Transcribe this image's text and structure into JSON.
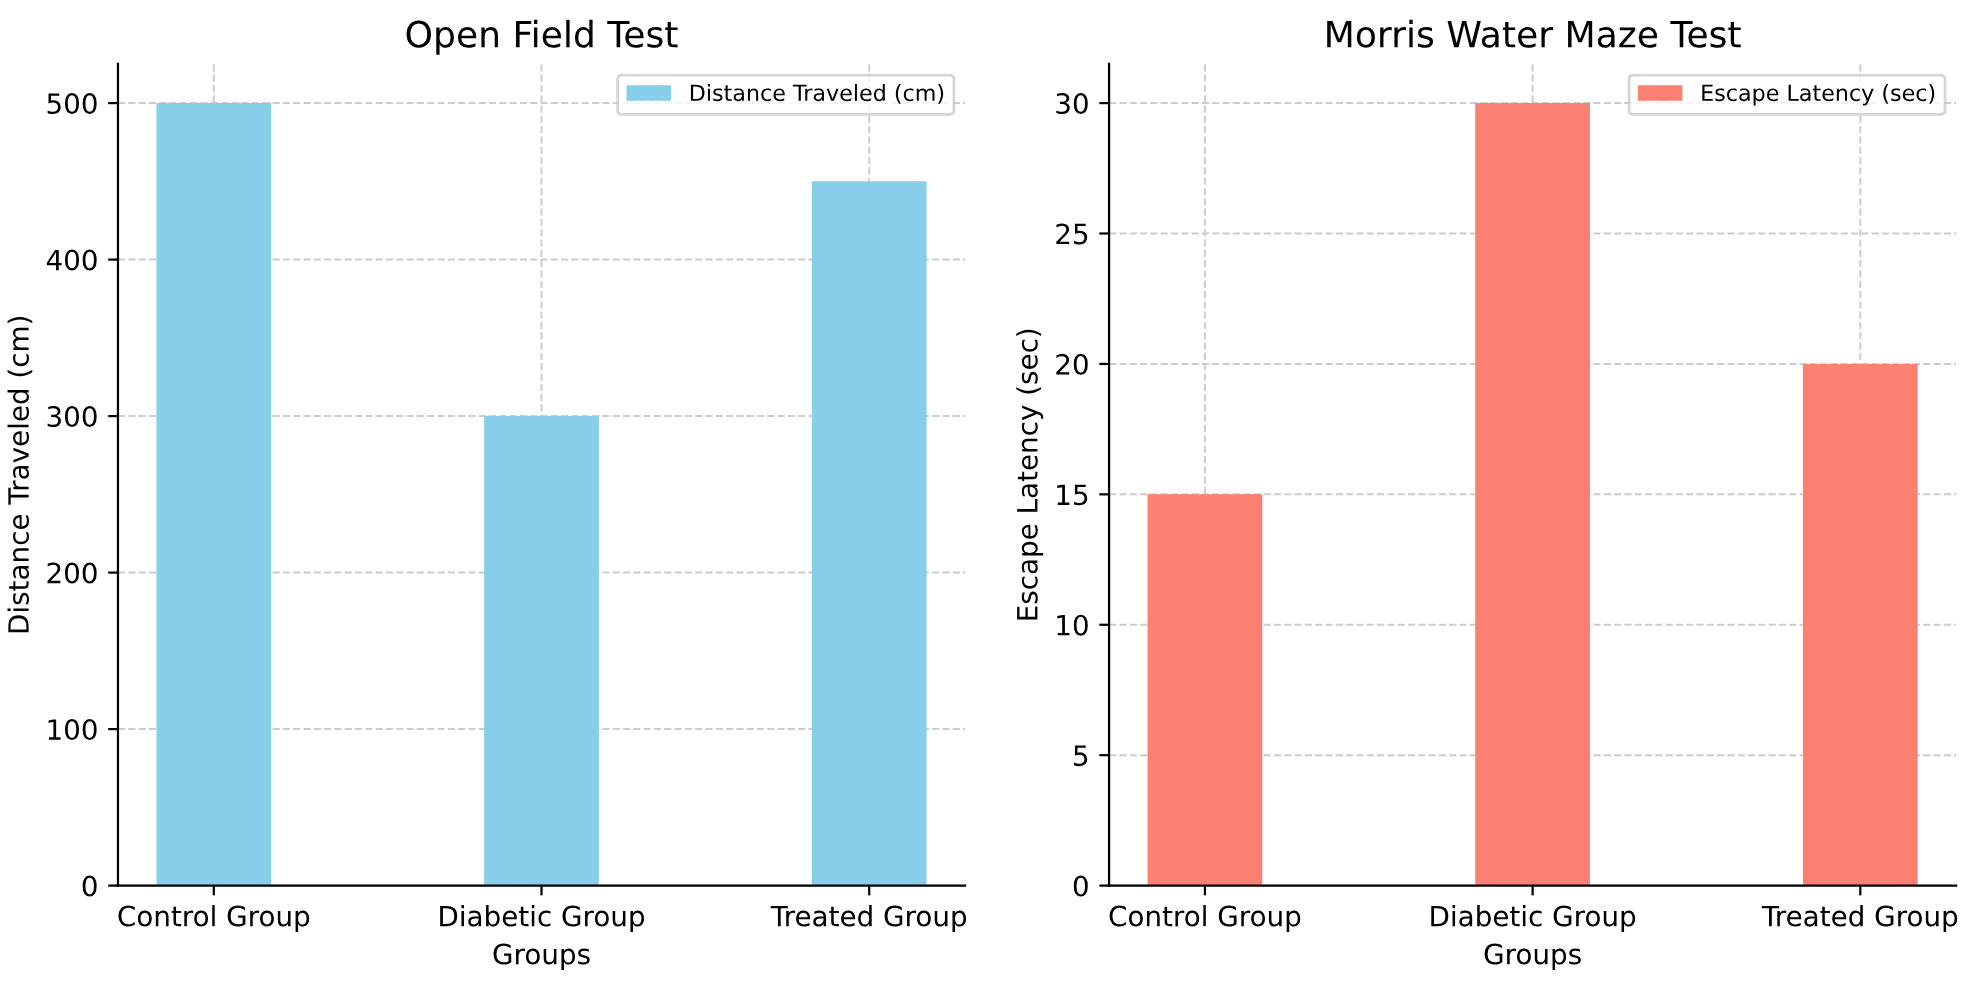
{
  "chart_data": [
    {
      "type": "bar",
      "title": "Open Field Test",
      "xlabel": "Groups",
      "ylabel": "Distance Traveled (cm)",
      "categories": [
        "Control Group",
        "Diabetic Group",
        "Treated Group"
      ],
      "series": [
        {
          "name": "Distance Traveled (cm)",
          "color": "#87ceeb",
          "values": [
            500,
            300,
            450
          ]
        }
      ],
      "ylim": [
        0,
        525
      ],
      "yticks": [
        0,
        100,
        200,
        300,
        400,
        500
      ],
      "grid": true,
      "legend": "top right"
    },
    {
      "type": "bar",
      "title": "Morris Water Maze Test",
      "xlabel": "Groups",
      "ylabel": "Escape Latency (sec)",
      "categories": [
        "Control Group",
        "Diabetic Group",
        "Treated Group"
      ],
      "series": [
        {
          "name": "Escape Latency (sec)",
          "color": "#fa8072",
          "values": [
            15,
            30,
            20
          ]
        }
      ],
      "ylim": [
        0,
        31.5
      ],
      "yticks": [
        0,
        5,
        10,
        15,
        20,
        25,
        30
      ],
      "grid": true,
      "legend": "top right"
    }
  ]
}
